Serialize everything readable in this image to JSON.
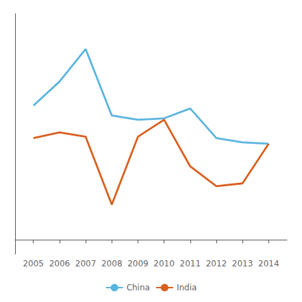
{
  "chart_data": {
    "type": "line",
    "x": [
      2005,
      2006,
      2007,
      2008,
      2009,
      2010,
      2011,
      2012,
      2013,
      2014
    ],
    "series": [
      {
        "name": "China",
        "color": "#5ab4e0",
        "values": [
          9.5,
          11.2,
          13.5,
          8.8,
          8.5,
          8.6,
          9.3,
          7.2,
          6.9,
          6.8
        ]
      },
      {
        "name": "India",
        "color": "#d95f1e",
        "values": [
          7.2,
          7.6,
          7.3,
          2.5,
          7.3,
          8.5,
          5.2,
          3.8,
          4.0,
          6.8
        ]
      }
    ],
    "xlim": [
      2004.3,
      2014.7
    ],
    "xticks": [
      2005,
      2006,
      2007,
      2008,
      2009,
      2010,
      2011,
      2012,
      2013,
      2014
    ],
    "ylim": [
      -1,
      16
    ],
    "tick_labels": "x",
    "grid": false,
    "legend": "bottom"
  }
}
